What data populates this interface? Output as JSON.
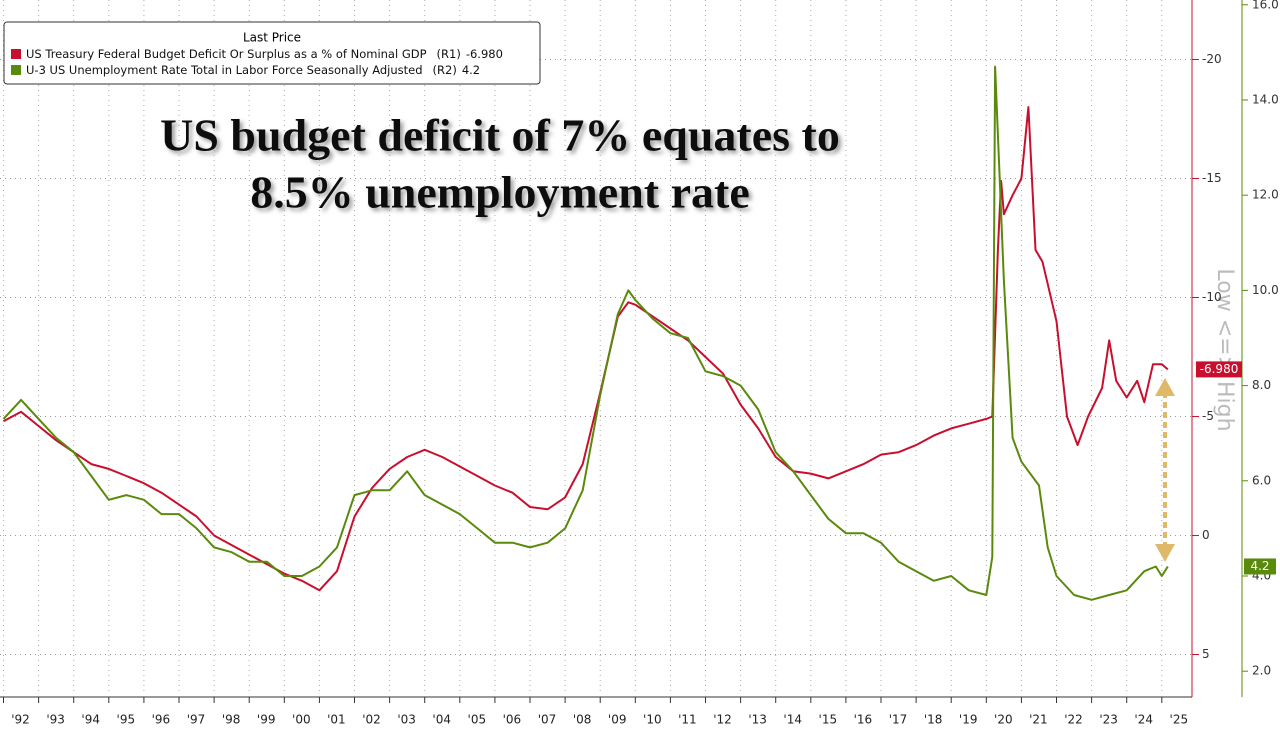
{
  "chart_data": {
    "type": "line",
    "title": [
      "US budget deficit of 7% equates to",
      "8.5% unemployment rate"
    ],
    "legend_title": "Last Price",
    "annotation": "Low <=> High",
    "xlim": [
      1991.9,
      2025.86
    ],
    "xticks": [
      {
        "value": 1992,
        "label": "'92"
      },
      {
        "value": 1993,
        "label": "'93"
      },
      {
        "value": 1994,
        "label": "'94"
      },
      {
        "value": 1995,
        "label": "'95"
      },
      {
        "value": 1996,
        "label": "'96"
      },
      {
        "value": 1997,
        "label": "'97"
      },
      {
        "value": 1998,
        "label": "'98"
      },
      {
        "value": 1999,
        "label": "'99"
      },
      {
        "value": 2000,
        "label": "'00"
      },
      {
        "value": 2001,
        "label": "'01"
      },
      {
        "value": 2002,
        "label": "'02"
      },
      {
        "value": 2003,
        "label": "'03"
      },
      {
        "value": 2004,
        "label": "'04"
      },
      {
        "value": 2005,
        "label": "'05"
      },
      {
        "value": 2006,
        "label": "'06"
      },
      {
        "value": 2007,
        "label": "'07"
      },
      {
        "value": 2008,
        "label": "'08"
      },
      {
        "value": 2009,
        "label": "'09"
      },
      {
        "value": 2010,
        "label": "'10"
      },
      {
        "value": 2011,
        "label": "'11"
      },
      {
        "value": 2012,
        "label": "'12"
      },
      {
        "value": 2013,
        "label": "'13"
      },
      {
        "value": 2014,
        "label": "'14"
      },
      {
        "value": 2015,
        "label": "'15"
      },
      {
        "value": 2016,
        "label": "'16"
      },
      {
        "value": 2017,
        "label": "'17"
      },
      {
        "value": 2018,
        "label": "'18"
      },
      {
        "value": 2019,
        "label": "'19"
      },
      {
        "value": 2020,
        "label": "'20"
      },
      {
        "value": 2021,
        "label": "'21"
      },
      {
        "value": 2022,
        "label": "'22"
      },
      {
        "value": 2023,
        "label": "'23"
      },
      {
        "value": 2024,
        "label": "'24"
      },
      {
        "value": 2025,
        "label": "'25"
      }
    ],
    "ylim": [
      6.7,
      -22.5
    ],
    "yticks": [
      -20,
      -15,
      -10,
      -5,
      0,
      5
    ],
    "y2lim": [
      1.5,
      16.1
    ],
    "y2ticks": [
      {
        "value": 2,
        "label": "2.0"
      },
      {
        "value": 4,
        "label": "4.0"
      },
      {
        "value": 6,
        "label": "6.0"
      },
      {
        "value": 8,
        "label": "8.0"
      },
      {
        "value": 10,
        "label": "10.0"
      },
      {
        "value": 12,
        "label": "12.0"
      },
      {
        "value": 14,
        "label": "14.0"
      },
      {
        "value": 16,
        "label": "16.0"
      }
    ],
    "grid": true,
    "series": [
      {
        "name": "US Treasury Federal Budget Deficit Or Surplus as a % of Nominal GDP",
        "axis_label": "(R1)",
        "last_label": "-6.980",
        "color": "#c8102e",
        "axis": "y",
        "x": [
          1992.0,
          1992.5,
          1993.0,
          1993.5,
          1994.0,
          1994.5,
          1995.0,
          1995.5,
          1996.0,
          1996.5,
          1997.0,
          1997.5,
          1998.0,
          1998.5,
          1999.0,
          1999.5,
          2000.0,
          2000.5,
          2001.0,
          2001.5,
          2002.0,
          2002.5,
          2003.0,
          2003.5,
          2004.0,
          2004.5,
          2005.0,
          2005.5,
          2006.0,
          2006.5,
          2007.0,
          2007.5,
          2008.0,
          2008.5,
          2009.0,
          2009.5,
          2009.8,
          2010.0,
          2010.5,
          2011.0,
          2011.5,
          2012.0,
          2012.5,
          2013.0,
          2013.5,
          2014.0,
          2014.5,
          2015.0,
          2015.5,
          2016.0,
          2016.5,
          2017.0,
          2017.5,
          2018.0,
          2018.5,
          2019.0,
          2019.5,
          2020.0,
          2020.17,
          2020.33,
          2020.42,
          2020.5,
          2020.75,
          2021.0,
          2021.2,
          2021.4,
          2021.6,
          2022.0,
          2022.3,
          2022.6,
          2022.9,
          2023.3,
          2023.5,
          2023.7,
          2024.0,
          2024.3,
          2024.5,
          2024.75,
          2025.0,
          2025.17
        ],
        "values": [
          -4.8,
          -5.2,
          -4.6,
          -4.0,
          -3.5,
          -3.0,
          -2.8,
          -2.5,
          -2.2,
          -1.8,
          -1.3,
          -0.8,
          0.0,
          0.4,
          0.8,
          1.2,
          1.6,
          1.9,
          2.3,
          1.5,
          -0.8,
          -2.0,
          -2.8,
          -3.3,
          -3.6,
          -3.3,
          -2.9,
          -2.5,
          -2.1,
          -1.8,
          -1.2,
          -1.1,
          -1.6,
          -3.0,
          -6.0,
          -9.2,
          -9.8,
          -9.7,
          -9.2,
          -8.7,
          -8.2,
          -7.5,
          -6.8,
          -5.5,
          -4.5,
          -3.3,
          -2.7,
          -2.6,
          -2.4,
          -2.7,
          -3.0,
          -3.4,
          -3.5,
          -3.8,
          -4.2,
          -4.5,
          -4.7,
          -4.9,
          -5.0,
          -12.0,
          -14.9,
          -13.5,
          -14.3,
          -15.0,
          -18.0,
          -12.0,
          -11.5,
          -9.0,
          -5.0,
          -3.8,
          -5.0,
          -6.2,
          -8.2,
          -6.5,
          -5.8,
          -6.5,
          -5.6,
          -7.2,
          -7.2,
          -6.98
        ]
      },
      {
        "name": "U-3 US Unemployment Rate Total in Labor Force Seasonally Adjusted",
        "axis_label": "(R2)",
        "last_label": "4.2",
        "color": "#5a8a0c",
        "axis": "y2",
        "x": [
          1992.0,
          1992.5,
          1993.0,
          1993.5,
          1994.0,
          1994.5,
          1995.0,
          1995.5,
          1996.0,
          1996.5,
          1997.0,
          1997.5,
          1998.0,
          1998.5,
          1999.0,
          1999.5,
          2000.0,
          2000.5,
          2001.0,
          2001.5,
          2002.0,
          2002.5,
          2003.0,
          2003.5,
          2004.0,
          2004.5,
          2005.0,
          2005.5,
          2006.0,
          2006.5,
          2007.0,
          2007.5,
          2008.0,
          2008.5,
          2009.0,
          2009.5,
          2009.8,
          2010.0,
          2010.5,
          2011.0,
          2011.5,
          2012.0,
          2012.5,
          2013.0,
          2013.5,
          2014.0,
          2014.5,
          2015.0,
          2015.5,
          2016.0,
          2016.5,
          2017.0,
          2017.5,
          2018.0,
          2018.5,
          2019.0,
          2019.5,
          2020.0,
          2020.17,
          2020.25,
          2020.5,
          2020.75,
          2021.0,
          2021.5,
          2021.75,
          2022.0,
          2022.5,
          2023.0,
          2023.5,
          2024.0,
          2024.5,
          2024.83,
          2025.0,
          2025.17
        ],
        "values": [
          7.3,
          7.7,
          7.3,
          6.9,
          6.6,
          6.1,
          5.6,
          5.7,
          5.6,
          5.3,
          5.3,
          5.0,
          4.6,
          4.5,
          4.3,
          4.3,
          4.0,
          4.0,
          4.2,
          4.6,
          5.7,
          5.8,
          5.8,
          6.2,
          5.7,
          5.5,
          5.3,
          5.0,
          4.7,
          4.7,
          4.6,
          4.7,
          5.0,
          5.8,
          7.8,
          9.5,
          10.0,
          9.8,
          9.4,
          9.1,
          9.0,
          8.3,
          8.2,
          8.0,
          7.5,
          6.6,
          6.2,
          5.7,
          5.2,
          4.9,
          4.9,
          4.7,
          4.3,
          4.1,
          3.9,
          4.0,
          3.7,
          3.6,
          4.4,
          14.7,
          10.2,
          6.9,
          6.4,
          5.9,
          4.6,
          4.0,
          3.6,
          3.5,
          3.6,
          3.7,
          4.1,
          4.2,
          4.0,
          4.2
        ]
      }
    ]
  }
}
